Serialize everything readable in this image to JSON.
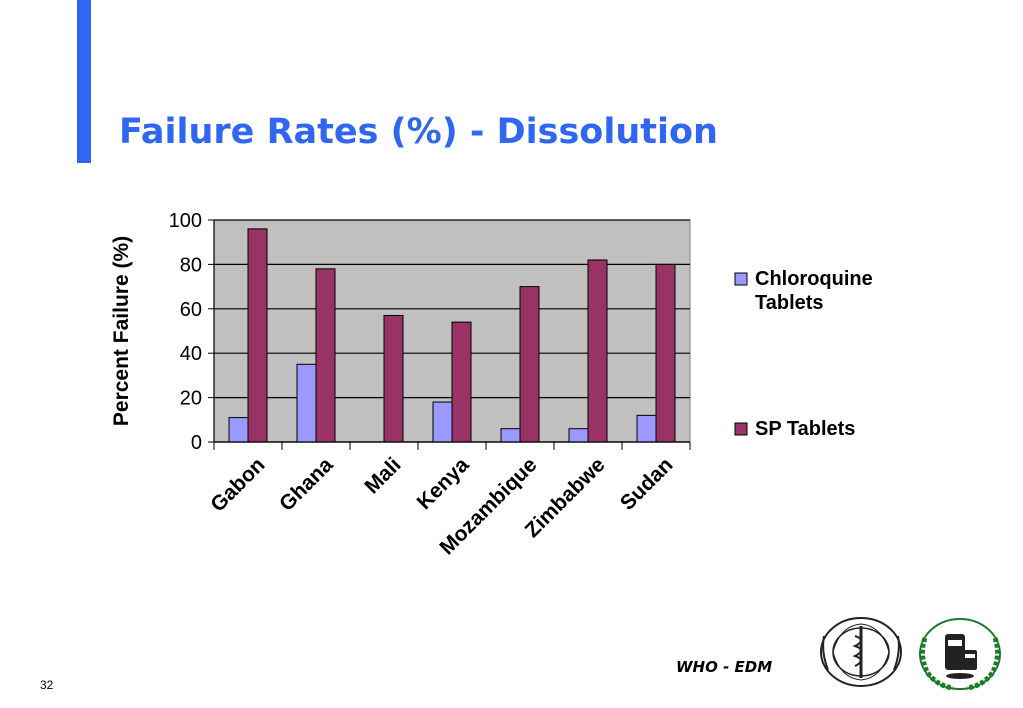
{
  "slide": {
    "title": "Failure Rates (%) - Dissolution",
    "footer": "WHO - EDM",
    "page_number": "32"
  },
  "colors": {
    "accent": "#2f66f2",
    "title": "#2f66f2",
    "plot_bg": "#c0c0c0",
    "series_chloroquine": "#9999ff",
    "series_sp": "#993366"
  },
  "icons": {
    "who_logo": "who-emblem-icon",
    "edm_logo": "edm-emblem-icon"
  },
  "chart_data": {
    "type": "bar",
    "categories": [
      "Gabon",
      "Ghana",
      "Mali",
      "Kenya",
      "Mozambique",
      "Zimbabwe",
      "Sudan"
    ],
    "series": [
      {
        "name": "Chloroquine Tablets",
        "values": [
          11,
          35,
          0,
          18,
          6,
          6,
          12
        ]
      },
      {
        "name": "SP Tablets",
        "values": [
          96,
          78,
          57,
          54,
          70,
          82,
          80
        ]
      }
    ],
    "title": "",
    "xlabel": "",
    "ylabel": "Percent Failure (%)",
    "ylim": [
      0,
      100
    ],
    "yticks": [
      0,
      20,
      40,
      60,
      80,
      100
    ],
    "grid": true,
    "legend": "right"
  }
}
